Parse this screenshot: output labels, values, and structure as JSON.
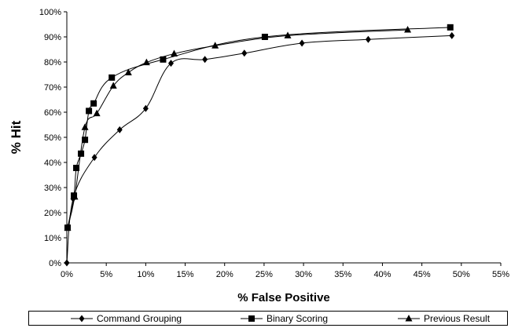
{
  "chart_data": {
    "type": "line",
    "xlabel": "% False Positive",
    "ylabel": "% Hit",
    "xlim": [
      0,
      55
    ],
    "ylim": [
      0,
      100
    ],
    "x_ticks": [
      0,
      5,
      10,
      15,
      20,
      25,
      30,
      35,
      40,
      45,
      50,
      55
    ],
    "y_ticks": [
      0,
      10,
      20,
      30,
      40,
      50,
      60,
      70,
      80,
      90,
      100
    ],
    "x_tick_labels": [
      "0%",
      "5%",
      "10%",
      "15%",
      "20%",
      "25%",
      "30%",
      "35%",
      "40%",
      "45%",
      "50%",
      "55%"
    ],
    "y_tick_labels": [
      "0%",
      "10%",
      "20%",
      "30%",
      "40%",
      "50%",
      "60%",
      "70%",
      "80%",
      "90%",
      "100%"
    ],
    "grid": false,
    "legend_position": "bottom",
    "series": [
      {
        "name": "Command Grouping",
        "marker": "diamond",
        "points": [
          [
            0,
            0
          ],
          [
            0.8,
            25.5
          ],
          [
            3.5,
            42
          ],
          [
            6.7,
            53
          ],
          [
            10,
            61.5
          ],
          [
            13.2,
            79.5
          ],
          [
            17.5,
            81
          ],
          [
            22.5,
            83.5
          ],
          [
            29.8,
            87.5
          ],
          [
            38.2,
            89
          ],
          [
            48.8,
            90.5
          ]
        ]
      },
      {
        "name": "Binary Scoring",
        "marker": "square",
        "points": [
          [
            0.1,
            14
          ],
          [
            0.9,
            26.8
          ],
          [
            1.2,
            37.8
          ],
          [
            1.8,
            43.5
          ],
          [
            2.3,
            49
          ],
          [
            2.8,
            60.5
          ],
          [
            3.4,
            63.5
          ],
          [
            5.7,
            73.8
          ],
          [
            12.2,
            81
          ],
          [
            25.1,
            90
          ],
          [
            48.6,
            93.8
          ]
        ]
      },
      {
        "name": "Previous Result",
        "marker": "triangle",
        "points": [
          [
            0.1,
            14
          ],
          [
            1.0,
            26.3
          ],
          [
            2.3,
            54
          ],
          [
            3.8,
            59.5
          ],
          [
            5.9,
            70.5
          ],
          [
            7.8,
            75.8
          ],
          [
            10.1,
            79.8
          ],
          [
            13.6,
            83.3
          ],
          [
            18.8,
            86.5
          ],
          [
            28,
            90.5
          ],
          [
            43.2,
            92.8
          ]
        ]
      }
    ]
  }
}
